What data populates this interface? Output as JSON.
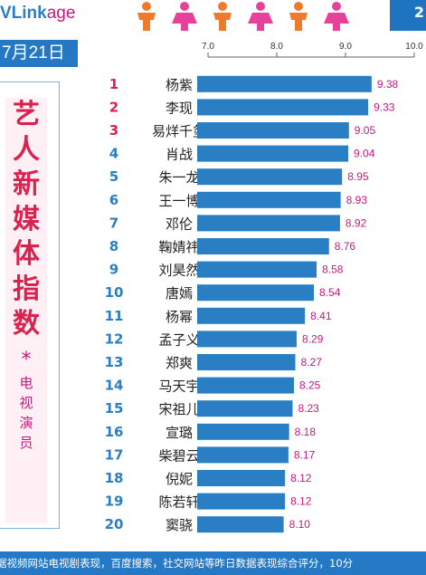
{
  "header": {
    "logo_part1": "VLink",
    "logo_part2": "age",
    "corner_text": "2",
    "date": "7月21日"
  },
  "side_title": {
    "chars": [
      "艺",
      "人",
      "新",
      "媒",
      "体",
      "指",
      "数"
    ],
    "star": "*",
    "sub_chars": [
      "电",
      "视",
      "演",
      "员"
    ]
  },
  "footer": {
    "text": "据视频网站电视剧表现，百度搜索，社交网站等昨日数据表现综合评分，10分"
  },
  "colors": {
    "bar": "#2a7fc4",
    "value": "#c4197c",
    "rank_top3": "#d8234f",
    "rank_other": "#2a7fc4",
    "name": "#222222"
  },
  "chart_data": {
    "type": "bar",
    "orientation": "horizontal",
    "title": "",
    "xlim": [
      7.0,
      10.0
    ],
    "xticks": [
      "7.0",
      "8.0",
      "9.0",
      "10.0"
    ],
    "grid": false,
    "ranks": [
      "1",
      "2",
      "3",
      "4",
      "5",
      "6",
      "7",
      "8",
      "9",
      "10",
      "11",
      "12",
      "13",
      "14",
      "15",
      "16",
      "17",
      "18",
      "19",
      "20"
    ],
    "categories": [
      "杨紫",
      "李现",
      "易烊千玺",
      "肖战",
      "朱一龙",
      "王一博",
      "邓伦",
      "鞠婧祎",
      "刘昊然",
      "唐嫣",
      "杨幂",
      "孟子义",
      "郑爽",
      "马天宇",
      "宋祖儿",
      "宣璐",
      "柴碧云",
      "倪妮",
      "陈若轩",
      "窦骁"
    ],
    "values": [
      9.38,
      9.33,
      9.05,
      9.04,
      8.95,
      8.93,
      8.92,
      8.76,
      8.58,
      8.54,
      8.41,
      8.29,
      8.27,
      8.25,
      8.23,
      8.18,
      8.17,
      8.12,
      8.12,
      8.1
    ],
    "value_labels": [
      "9.38",
      "9.33",
      "9.05",
      "9.04",
      "8.95",
      "8.93",
      "8.92",
      "8.76",
      "8.58",
      "8.54",
      "8.41",
      "8.29",
      "8.27",
      "8.25",
      "8.23",
      "8.18",
      "8.17",
      "8.12",
      "8.12",
      "8.10"
    ]
  }
}
